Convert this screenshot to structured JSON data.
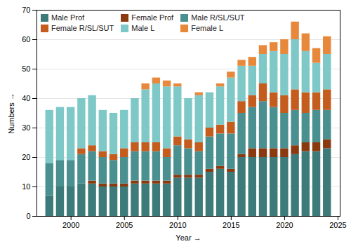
{
  "chart_data": {
    "type": "bar",
    "stacked": true,
    "x": [
      1998,
      1999,
      2000,
      2001,
      2002,
      2003,
      2004,
      2005,
      2006,
      2007,
      2008,
      2009,
      2010,
      2011,
      2012,
      2013,
      2014,
      2015,
      2016,
      2017,
      2018,
      2019,
      2020,
      2021,
      2022,
      2023,
      2024
    ],
    "series": [
      {
        "name": "Male Prof",
        "color": "#3d7a7a",
        "values": [
          7,
          10,
          10,
          11,
          11,
          10,
          10,
          10,
          11,
          11,
          11,
          11,
          13,
          13,
          13,
          15,
          16,
          15,
          20,
          20,
          20,
          20,
          20,
          21,
          22,
          22,
          23
        ]
      },
      {
        "name": "Female Prof",
        "color": "#8b3a0f",
        "values": [
          0,
          0,
          0,
          0,
          1,
          1,
          1,
          1,
          1,
          1,
          1,
          1,
          1,
          1,
          1,
          1,
          1,
          1,
          1,
          3,
          3,
          3,
          3,
          3,
          3,
          3,
          3
        ]
      },
      {
        "name": "Male R/SL/SUT",
        "color": "#4a9090",
        "values": [
          11,
          9,
          9,
          10,
          10,
          9,
          8,
          9,
          10,
          10,
          10,
          8,
          10,
          9,
          8,
          11,
          11,
          12,
          14,
          14,
          16,
          14,
          12,
          12,
          10,
          11,
          10
        ]
      },
      {
        "name": "Female R/SL/SUT",
        "color": "#c45c1e",
        "values": [
          0,
          0,
          0,
          2,
          2,
          2,
          2,
          3,
          3,
          3,
          3,
          3,
          3,
          3,
          3,
          3,
          3,
          4,
          4,
          4,
          6,
          5,
          6,
          7,
          7,
          6,
          7
        ]
      },
      {
        "name": "Male L",
        "color": "#7ec8c8",
        "values": [
          18,
          18,
          18,
          17,
          17,
          14,
          14,
          13,
          15,
          18,
          20,
          21,
          17,
          14,
          16,
          12,
          13,
          15,
          12,
          10,
          10,
          14,
          14,
          17,
          14,
          10,
          12
        ]
      },
      {
        "name": "Female L",
        "color": "#e8883a",
        "values": [
          0,
          0,
          0,
          0,
          0,
          0,
          0,
          0,
          0,
          2,
          2,
          2,
          1,
          0,
          1,
          0,
          1,
          2,
          2,
          3,
          3,
          3,
          5,
          6,
          6,
          5,
          6
        ]
      }
    ],
    "xlabel": "Year",
    "ylabel": "Numbers",
    "xlim": [
      1996.8,
      2025.2
    ],
    "xticks": [
      2000,
      2005,
      2010,
      2015,
      2020,
      2025
    ],
    "ylim": [
      0,
      70
    ],
    "yticks": [
      0,
      10,
      20,
      30,
      40,
      50,
      60,
      70
    ],
    "grid": true,
    "legend": "upper left"
  }
}
